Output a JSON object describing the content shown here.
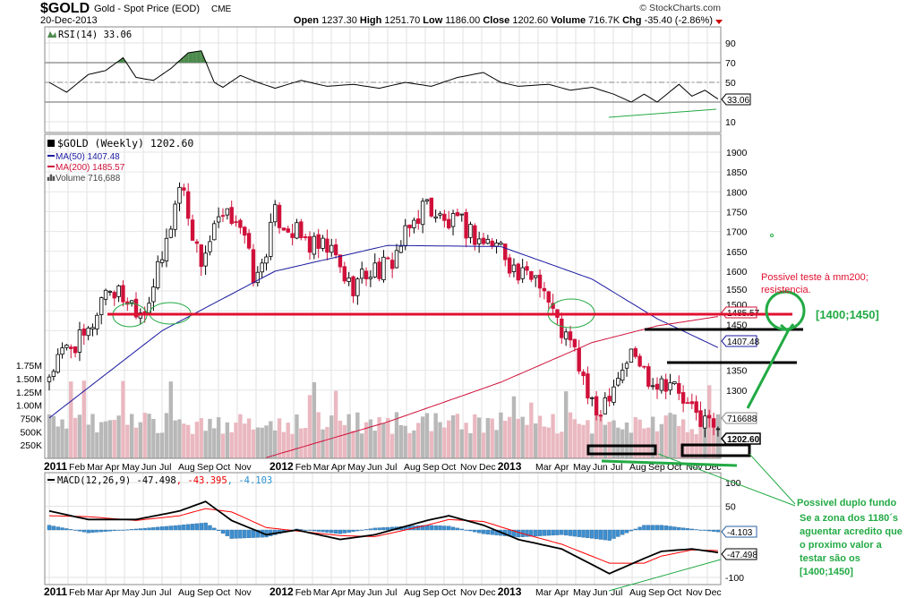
{
  "header": {
    "symbol": "$GOLD",
    "name": "Gold - Spot Price (EOD)",
    "exchange": "CME",
    "date": "20-Dec-2013",
    "open_label": "Open",
    "open": "1237.30",
    "high_label": "High",
    "high": "1251.70",
    "low_label": "Low",
    "low": "1186.00",
    "close_label": "Close",
    "close": "1202.60",
    "volume_label": "Volume",
    "volume": "716.7K",
    "chg_label": "Chg",
    "chg": "-35.40 (-2.86%)",
    "copyright": "© StockCharts.com"
  },
  "colors": {
    "up": "#000000",
    "down": "#d0103a",
    "ma50": "#1a1aa0",
    "ma200": "#d0103a",
    "rsi_pos": "#4d8a4d",
    "rsi_neg": "#a05050",
    "macd_hist": "#3d8fd0",
    "signal": "#ff0000",
    "annotation_green": "#22aa44",
    "annotation_red": "#e01030",
    "vol_up": "#b8b8b8",
    "vol_down": "#eab8c0"
  },
  "chart_data": [
    {
      "type": "line",
      "title": "RSI(14) 33.06",
      "legend": "RSI(14) 33.06",
      "yticks": [
        "90",
        "70",
        "50",
        "10"
      ],
      "ylim": [
        0,
        100
      ],
      "last_label": "33.06",
      "points_week_value": [
        [
          0,
          50
        ],
        [
          4,
          40
        ],
        [
          9,
          58
        ],
        [
          13,
          62
        ],
        [
          17,
          75
        ],
        [
          20,
          55
        ],
        [
          24,
          52
        ],
        [
          28,
          64
        ],
        [
          32,
          80
        ],
        [
          35,
          82
        ],
        [
          38,
          50
        ],
        [
          40,
          45
        ],
        [
          44,
          57
        ],
        [
          48,
          50
        ],
        [
          52,
          44
        ],
        [
          58,
          52
        ],
        [
          64,
          46
        ],
        [
          70,
          48
        ],
        [
          76,
          44
        ],
        [
          82,
          50
        ],
        [
          88,
          46
        ],
        [
          94,
          55
        ],
        [
          100,
          60
        ],
        [
          104,
          50
        ],
        [
          108,
          46
        ],
        [
          115,
          48
        ],
        [
          120,
          42
        ],
        [
          125,
          45
        ],
        [
          130,
          38
        ],
        [
          134,
          30
        ],
        [
          137,
          38
        ],
        [
          140,
          30
        ],
        [
          145,
          48
        ],
        [
          148,
          36
        ],
        [
          151,
          42
        ],
        [
          154,
          33.06
        ]
      ]
    },
    {
      "type": "candlestick",
      "title": "$GOLD (Weekly) 1202.60",
      "frequency": "weekly",
      "legend": {
        "price": "$GOLD (Weekly) 1202.60",
        "ma50": "MA(50) 1407.48",
        "ma200": "MA(200) 1485.57",
        "volume": "Volume 716,688"
      },
      "yticks": [
        "1900",
        "1850",
        "1800",
        "1750",
        "1700",
        "1650",
        "1600",
        "1550",
        "1500",
        "1450",
        "1350",
        "1300"
      ],
      "volume_ticks": [
        "1.75M",
        "1.50M",
        "1.25M",
        "1.00M",
        "750K",
        "500K",
        "250K"
      ],
      "ylim": [
        1150,
        1950
      ],
      "monthly_close": [
        1340,
        1410,
        1430,
        1560,
        1535,
        1500,
        1625,
        1830,
        1620,
        1720,
        1745,
        1565,
        1740,
        1700,
        1660,
        1650,
        1560,
        1600,
        1610,
        1690,
        1775,
        1720,
        1715,
        1675,
        1665,
        1580,
        1595,
        1470,
        1390,
        1230,
        1320,
        1395,
        1325,
        1325,
        1250,
        1202.6
      ],
      "ma50_points_week_value": [
        [
          0,
          1230
        ],
        [
          26,
          1450
        ],
        [
          52,
          1600
        ],
        [
          78,
          1665
        ],
        [
          104,
          1662
        ],
        [
          125,
          1580
        ],
        [
          140,
          1480
        ],
        [
          154,
          1407.48
        ]
      ],
      "ma200_points_week_value": [
        [
          50,
          1130
        ],
        [
          78,
          1220
        ],
        [
          104,
          1320
        ],
        [
          125,
          1420
        ],
        [
          140,
          1462
        ],
        [
          154,
          1485.57
        ]
      ],
      "last_labels": {
        "ma200": "1485.57",
        "ma50": "1407.48",
        "volume": "716688",
        "close": "1202.60"
      }
    },
    {
      "type": "line",
      "title": "MACD(12,26,9)",
      "legend": {
        "macd": "MACD(12,26,9) -47.498",
        "signal": ", -43.395",
        "hist": ", -4.103"
      },
      "yticks": [
        "100",
        "50",
        "-100"
      ],
      "ylim": [
        -120,
        120
      ],
      "macd_points_week_value": [
        [
          0,
          40
        ],
        [
          9,
          22
        ],
        [
          20,
          22
        ],
        [
          30,
          40
        ],
        [
          36,
          60
        ],
        [
          42,
          20
        ],
        [
          50,
          -10
        ],
        [
          57,
          0
        ],
        [
          67,
          -20
        ],
        [
          75,
          -10
        ],
        [
          87,
          20
        ],
        [
          92,
          30
        ],
        [
          100,
          10
        ],
        [
          108,
          -20
        ],
        [
          118,
          -40
        ],
        [
          129,
          -92
        ],
        [
          137,
          -60
        ],
        [
          141,
          -45
        ],
        [
          148,
          -40
        ],
        [
          154,
          -47.498
        ]
      ],
      "signal_points_week_value": [
        [
          0,
          30
        ],
        [
          9,
          28
        ],
        [
          20,
          20
        ],
        [
          30,
          30
        ],
        [
          36,
          45
        ],
        [
          42,
          38
        ],
        [
          50,
          5
        ],
        [
          57,
          -2
        ],
        [
          67,
          -12
        ],
        [
          75,
          -14
        ],
        [
          87,
          10
        ],
        [
          92,
          22
        ],
        [
          100,
          18
        ],
        [
          108,
          -5
        ],
        [
          118,
          -30
        ],
        [
          129,
          -70
        ],
        [
          137,
          -70
        ],
        [
          141,
          -55
        ],
        [
          148,
          -42
        ],
        [
          154,
          -43.395
        ]
      ],
      "last_labels": {
        "hist": "-4.103",
        "macd": "-47.498"
      }
    }
  ],
  "x_axis": {
    "labels": [
      "2011",
      "Feb",
      "Mar",
      "Apr",
      "May",
      "Jun",
      "Jul",
      "Aug",
      "Sep",
      "Oct",
      "Nov",
      "",
      "2012",
      "Feb",
      "Mar",
      "Apr",
      "May",
      "Jun",
      "Jul",
      "Aug",
      "Sep",
      "Oct",
      "Nov",
      "Dec",
      "2013",
      "",
      "Mar",
      "Apr",
      "May",
      "Jun",
      "Jul",
      "Aug",
      "Sep",
      "Oct",
      "Nov",
      "Dec"
    ]
  },
  "annotations": {
    "resistance_note": [
      "Possivel teste à mm200;",
      "resistencia."
    ],
    "target_range": "[1400;1450]",
    "double_bottom_note": [
      "Possivel duplo fundo",
      "Se a zona dos 1180´s",
      "aguentar acredito que",
      "o proximo valor a",
      "testar são os",
      "[1400;1450]"
    ]
  }
}
